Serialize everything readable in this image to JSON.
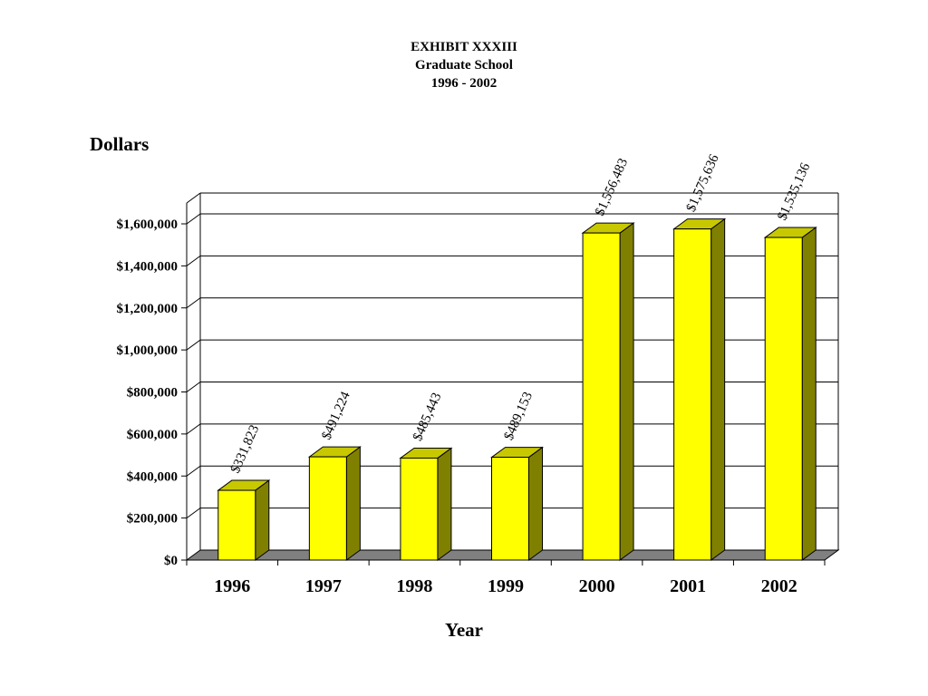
{
  "chart_data": {
    "type": "bar",
    "title": "EXHIBIT XXXIII",
    "subtitle": "Graduate School",
    "subtitle2": "1996 - 2002",
    "xlabel": "Year",
    "ylabel": "Dollars",
    "categories": [
      "1996",
      "1997",
      "1998",
      "1999",
      "2000",
      "2001",
      "2002"
    ],
    "values": [
      331823,
      491224,
      485443,
      489153,
      1556483,
      1575636,
      1535136
    ],
    "data_labels": [
      "$331,823",
      "$491,224",
      "$485,443",
      "$489,153",
      "$1,556,483",
      "$1,575,636",
      "$1,535,136"
    ],
    "ylim": [
      0,
      1600000
    ],
    "yticks": [
      0,
      200000,
      400000,
      600000,
      800000,
      1000000,
      1200000,
      1400000,
      1600000
    ],
    "ytick_labels": [
      "$0",
      "$200,000",
      "$400,000",
      "$600,000",
      "$800,000",
      "$1,000,000",
      "$1,200,000",
      "$1,400,000",
      "$1,600,000"
    ],
    "grid": true,
    "style": "3d-bar",
    "colors": {
      "bar_front": "#ffff00",
      "bar_top": "#c8c800",
      "bar_side": "#808000",
      "floor": "#808080",
      "grid": "#000000"
    }
  }
}
